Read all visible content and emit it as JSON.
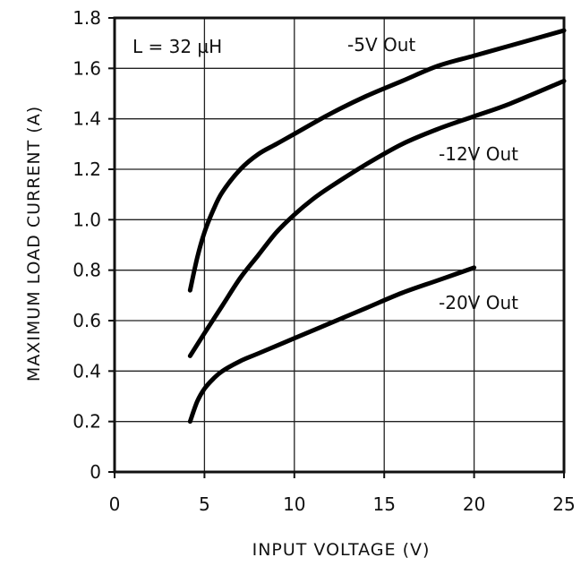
{
  "chart_data": {
    "type": "line",
    "title": "",
    "xlabel": "INPUT VOLTAGE (V)",
    "ylabel": "MAXIMUM LOAD CURRENT (A)",
    "xlim": [
      0,
      25
    ],
    "ylim": [
      0,
      1.8
    ],
    "xticks": [
      "0",
      "5",
      "10",
      "15",
      "20",
      "25"
    ],
    "yticks": [
      "0",
      "0.2",
      "0.4",
      "0.6",
      "0.8",
      "1.0",
      "1.2",
      "1.4",
      "1.6",
      "1.8"
    ],
    "grid": true,
    "annotation": "L = 32 µH",
    "series": [
      {
        "name": "-5V Out",
        "x": [
          4.2,
          4.6,
          5,
          5.5,
          6,
          7,
          8,
          9,
          10,
          12,
          14,
          16,
          18,
          20,
          22,
          25
        ],
        "y": [
          0.72,
          0.85,
          0.95,
          1.04,
          1.11,
          1.2,
          1.26,
          1.3,
          1.34,
          1.42,
          1.49,
          1.55,
          1.61,
          1.65,
          1.69,
          1.75
        ]
      },
      {
        "name": "-12V Out",
        "x": [
          4.2,
          5,
          6,
          7,
          8,
          9,
          10,
          11,
          12,
          14,
          16,
          18,
          20,
          22,
          25
        ],
        "y": [
          0.46,
          0.55,
          0.66,
          0.77,
          0.86,
          0.95,
          1.02,
          1.08,
          1.13,
          1.22,
          1.3,
          1.36,
          1.41,
          1.46,
          1.55
        ]
      },
      {
        "name": "-20V Out",
        "x": [
          4.2,
          4.6,
          5,
          5.5,
          6,
          7,
          8,
          10,
          12,
          14,
          16,
          18,
          20
        ],
        "y": [
          0.2,
          0.28,
          0.33,
          0.37,
          0.4,
          0.44,
          0.47,
          0.53,
          0.59,
          0.65,
          0.71,
          0.76,
          0.81
        ]
      }
    ]
  }
}
